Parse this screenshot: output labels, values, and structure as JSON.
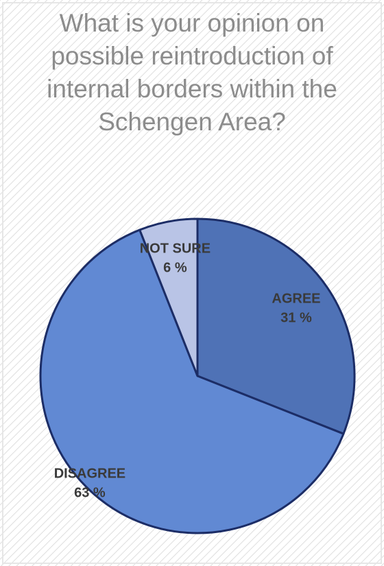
{
  "chart_data": {
    "type": "pie",
    "title": "What is your opinion on possible reintroduction of internal borders within the Schengen Area?",
    "categories": [
      "AGREE",
      "DISAGREE",
      "NOT SURE"
    ],
    "values": [
      31,
      63,
      6
    ],
    "value_labels": [
      "31 %",
      "63 %",
      "6 %"
    ],
    "colors": [
      "#4f72b6",
      "#6189d3",
      "#b9c4e6"
    ]
  }
}
